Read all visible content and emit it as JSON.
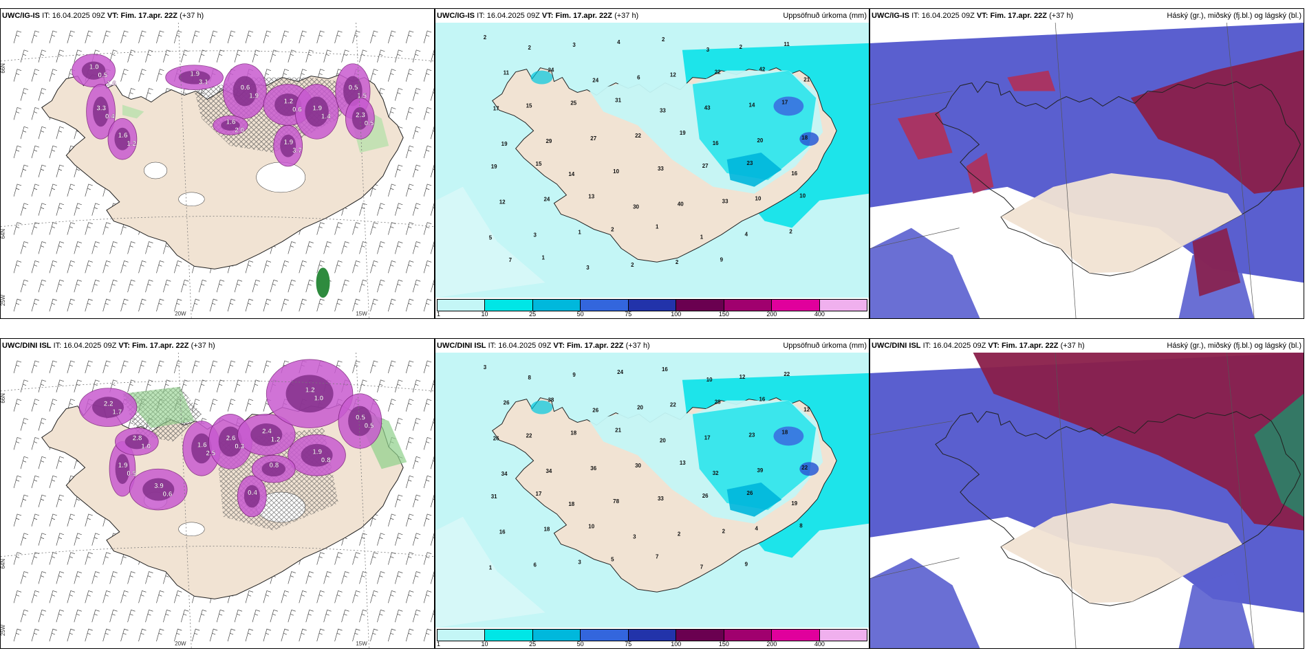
{
  "rows": [
    {
      "model": "UWC/IG-IS",
      "it_label": "IT:",
      "it_value": "16.04.2025 09Z",
      "vt_label": "VT:",
      "vt_value": "Fim. 17.apr. 22Z",
      "lead": "(+37 h)"
    },
    {
      "model": "UWC/DINI ISL",
      "it_label": "IT:",
      "it_value": "16.04.2025 09Z",
      "vt_label": "VT:",
      "vt_value": "Fim. 17.apr. 22Z",
      "lead": "(+37 h)"
    }
  ],
  "precip_title": "Uppsöfnuð úrkoma (mm)",
  "cloud_title": "Háský (gr.), miðský (fj.bl.) og lágský (bl.)",
  "colorbar": {
    "labels": [
      "1",
      "10",
      "25",
      "50",
      "75",
      "100",
      "150",
      "200",
      "400"
    ],
    "colors": [
      "#c4f6f6",
      "#00e6e6",
      "#00b8dc",
      "#3366dd",
      "#2233aa",
      "#6a0050",
      "#a0006e",
      "#e0009c",
      "#f0b0ee"
    ]
  },
  "grid_labels": {
    "lat66": "66N",
    "lat64": "64N",
    "lon25": "25W",
    "lon20": "20W",
    "lon15": "15W"
  },
  "precip_top": [
    {
      "v": "2"
    },
    {
      "v": "2"
    },
    {
      "v": "3"
    },
    {
      "v": "4"
    },
    {
      "v": "2"
    },
    {
      "v": "3"
    },
    {
      "v": "2"
    },
    {
      "v": "11"
    },
    {
      "v": "11"
    },
    {
      "v": "24"
    },
    {
      "v": "24"
    },
    {
      "v": "6"
    },
    {
      "v": "12"
    },
    {
      "v": "22"
    },
    {
      "v": "42"
    },
    {
      "v": "21"
    },
    {
      "v": "17"
    },
    {
      "v": "15"
    },
    {
      "v": "25"
    },
    {
      "v": "31"
    },
    {
      "v": "33"
    },
    {
      "v": "43"
    },
    {
      "v": "14"
    },
    {
      "v": "17"
    },
    {
      "v": "19"
    },
    {
      "v": "29"
    },
    {
      "v": "27"
    },
    {
      "v": "22"
    },
    {
      "v": "19"
    },
    {
      "v": "16"
    },
    {
      "v": "20"
    },
    {
      "v": "18"
    },
    {
      "v": "19"
    },
    {
      "v": "15"
    },
    {
      "v": "14"
    },
    {
      "v": "10"
    },
    {
      "v": "33"
    },
    {
      "v": "27"
    },
    {
      "v": "23"
    },
    {
      "v": "16"
    },
    {
      "v": "12"
    },
    {
      "v": "24"
    },
    {
      "v": "13"
    },
    {
      "v": "30"
    },
    {
      "v": "40"
    },
    {
      "v": "33"
    },
    {
      "v": "10"
    },
    {
      "v": "10"
    },
    {
      "v": "5"
    },
    {
      "v": "3"
    },
    {
      "v": "1"
    },
    {
      "v": "2"
    },
    {
      "v": "1"
    },
    {
      "v": "1"
    },
    {
      "v": "4"
    },
    {
      "v": "2"
    },
    {
      "v": "7"
    },
    {
      "v": "1"
    },
    {
      "v": "3"
    },
    {
      "v": "2"
    },
    {
      "v": "2"
    },
    {
      "v": "9"
    }
  ],
  "precip_bottom": [
    {
      "v": "3"
    },
    {
      "v": "8"
    },
    {
      "v": "9"
    },
    {
      "v": "24"
    },
    {
      "v": "16"
    },
    {
      "v": "10"
    },
    {
      "v": "12"
    },
    {
      "v": "22"
    },
    {
      "v": "26"
    },
    {
      "v": "38"
    },
    {
      "v": "26"
    },
    {
      "v": "20"
    },
    {
      "v": "22"
    },
    {
      "v": "28"
    },
    {
      "v": "16"
    },
    {
      "v": "12"
    },
    {
      "v": "26"
    },
    {
      "v": "22"
    },
    {
      "v": "18"
    },
    {
      "v": "21"
    },
    {
      "v": "20"
    },
    {
      "v": "17"
    },
    {
      "v": "23"
    },
    {
      "v": "18"
    },
    {
      "v": "34"
    },
    {
      "v": "34"
    },
    {
      "v": "36"
    },
    {
      "v": "30"
    },
    {
      "v": "13"
    },
    {
      "v": "32"
    },
    {
      "v": "39"
    },
    {
      "v": "22"
    },
    {
      "v": "31"
    },
    {
      "v": "17"
    },
    {
      "v": "18"
    },
    {
      "v": "78"
    },
    {
      "v": "33"
    },
    {
      "v": "26"
    },
    {
      "v": "26"
    },
    {
      "v": "19"
    },
    {
      "v": "16"
    },
    {
      "v": "18"
    },
    {
      "v": "10"
    },
    {
      "v": "3"
    },
    {
      "v": "2"
    },
    {
      "v": "2"
    },
    {
      "v": "4"
    },
    {
      "v": "8"
    },
    {
      "v": "1"
    },
    {
      "v": "6"
    },
    {
      "v": "3"
    },
    {
      "v": "5"
    },
    {
      "v": "7"
    },
    {
      "v": "7"
    },
    {
      "v": "9"
    }
  ],
  "snow_top": [
    {
      "v": "1.0"
    },
    {
      "v": "3.3"
    },
    {
      "v": "1.6"
    },
    {
      "v": "1.9"
    },
    {
      "v": "0.6"
    },
    {
      "v": "1.2"
    },
    {
      "v": "1.9"
    },
    {
      "v": "0.5"
    },
    {
      "v": "2.3"
    },
    {
      "v": "1.6"
    },
    {
      "v": "1.9"
    },
    {
      "v": "0.5"
    },
    {
      "v": "0.4"
    },
    {
      "v": "1.2"
    },
    {
      "v": "3.1"
    },
    {
      "v": "1.9"
    },
    {
      "v": "0.6"
    },
    {
      "v": "1.4"
    },
    {
      "v": "1.5"
    },
    {
      "v": "0.5"
    },
    {
      "v": "2.0"
    },
    {
      "v": "3.7"
    },
    {
      "v": "1.6"
    }
  ],
  "snow_bottom": [
    {
      "v": "2.2"
    },
    {
      "v": "1.9"
    },
    {
      "v": "2.8"
    },
    {
      "v": "3.9"
    },
    {
      "v": "1.6"
    },
    {
      "v": "2.6"
    },
    {
      "v": "2.4"
    },
    {
      "v": "1.2"
    },
    {
      "v": "0.5"
    },
    {
      "v": "1.9"
    },
    {
      "v": "0.4"
    },
    {
      "v": "0.8"
    },
    {
      "v": "1.7"
    },
    {
      "v": "0.5"
    },
    {
      "v": "1.0"
    },
    {
      "v": "0.6"
    },
    {
      "v": "2.5"
    },
    {
      "v": "0.3"
    },
    {
      "v": "1.2"
    },
    {
      "v": "1.0"
    },
    {
      "v": "0.5"
    },
    {
      "v": "0.8"
    }
  ]
}
